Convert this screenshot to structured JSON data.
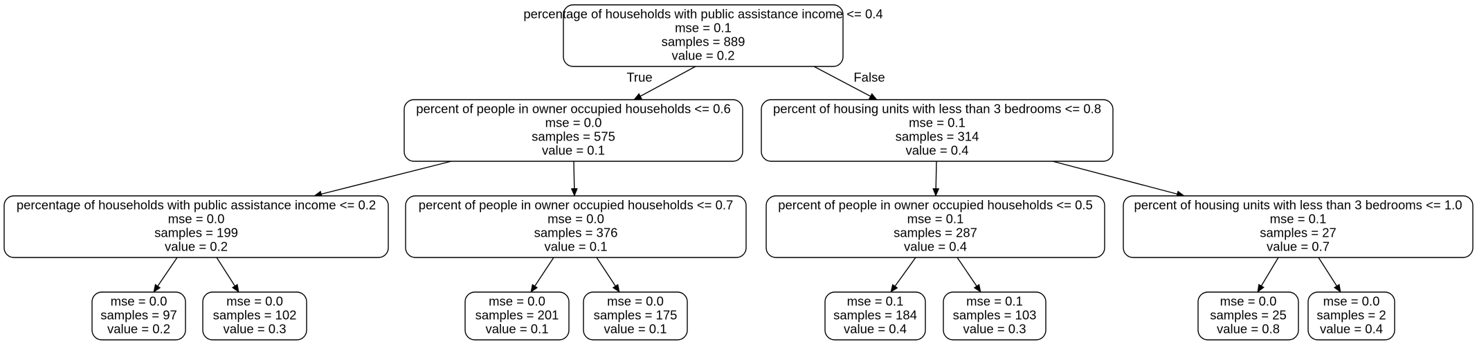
{
  "tree": {
    "nodes": [
      {
        "id": "n0",
        "lines": [
          "percentage of households with public assistance income <= 0.4",
          "mse = 0.1",
          "samples = 889",
          "value = 0.2"
        ]
      },
      {
        "id": "n1",
        "lines": [
          "percent of people in owner occupied households <= 0.6",
          "mse = 0.0",
          "samples = 575",
          "value = 0.1"
        ]
      },
      {
        "id": "n2",
        "lines": [
          "percent of housing units with less than 3 bedrooms <= 0.8",
          "mse = 0.1",
          "samples = 314",
          "value = 0.4"
        ]
      },
      {
        "id": "n3",
        "lines": [
          "percentage of households with public assistance income <= 0.2",
          "mse = 0.0",
          "samples = 199",
          "value = 0.2"
        ]
      },
      {
        "id": "n4",
        "lines": [
          "percent of people in owner occupied households <= 0.7",
          "mse = 0.0",
          "samples = 376",
          "value = 0.1"
        ]
      },
      {
        "id": "n5",
        "lines": [
          "percent of people in owner occupied households <= 0.5",
          "mse = 0.1",
          "samples = 287",
          "value = 0.4"
        ]
      },
      {
        "id": "n6",
        "lines": [
          "percent of housing units with less than 3 bedrooms <= 1.0",
          "mse = 0.1",
          "samples = 27",
          "value = 0.7"
        ]
      },
      {
        "id": "n7",
        "lines": [
          "mse = 0.0",
          "samples = 97",
          "value = 0.2"
        ]
      },
      {
        "id": "n8",
        "lines": [
          "mse = 0.0",
          "samples = 102",
          "value = 0.3"
        ]
      },
      {
        "id": "n9",
        "lines": [
          "mse = 0.0",
          "samples = 201",
          "value = 0.1"
        ]
      },
      {
        "id": "n10",
        "lines": [
          "mse = 0.0",
          "samples = 175",
          "value = 0.1"
        ]
      },
      {
        "id": "n11",
        "lines": [
          "mse = 0.1",
          "samples = 184",
          "value = 0.4"
        ]
      },
      {
        "id": "n12",
        "lines": [
          "mse = 0.1",
          "samples = 103",
          "value = 0.3"
        ]
      },
      {
        "id": "n13",
        "lines": [
          "mse = 0.0",
          "samples = 25",
          "value = 0.8"
        ]
      },
      {
        "id": "n14",
        "lines": [
          "mse = 0.0",
          "samples = 2",
          "value = 0.4"
        ]
      }
    ],
    "edges": [
      {
        "from": "n0",
        "to": "n1",
        "label": "True"
      },
      {
        "from": "n0",
        "to": "n2",
        "label": "False"
      },
      {
        "from": "n1",
        "to": "n3",
        "label": ""
      },
      {
        "from": "n1",
        "to": "n4",
        "label": ""
      },
      {
        "from": "n2",
        "to": "n5",
        "label": ""
      },
      {
        "from": "n2",
        "to": "n6",
        "label": ""
      },
      {
        "from": "n3",
        "to": "n7",
        "label": ""
      },
      {
        "from": "n3",
        "to": "n8",
        "label": ""
      },
      {
        "from": "n4",
        "to": "n9",
        "label": ""
      },
      {
        "from": "n4",
        "to": "n10",
        "label": ""
      },
      {
        "from": "n5",
        "to": "n11",
        "label": ""
      },
      {
        "from": "n5",
        "to": "n12",
        "label": ""
      },
      {
        "from": "n6",
        "to": "n13",
        "label": ""
      },
      {
        "from": "n6",
        "to": "n14",
        "label": ""
      }
    ]
  }
}
